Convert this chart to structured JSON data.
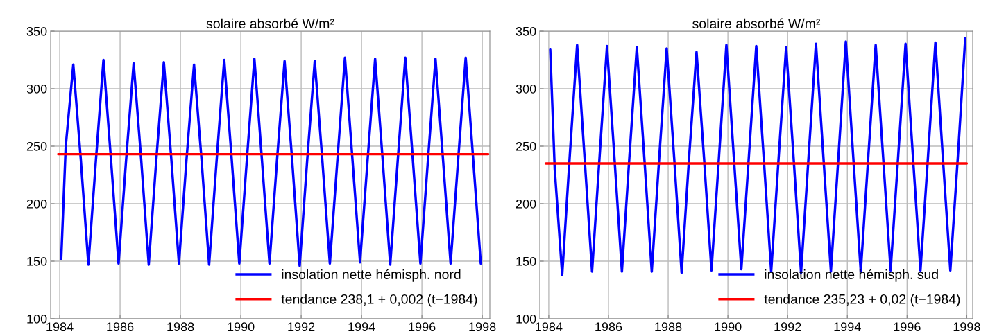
{
  "chart_data": [
    {
      "type": "line",
      "title": "solaire absorbé W/m²",
      "xlim": [
        1983.7,
        1998.25
      ],
      "xticks": [
        1984,
        1986,
        1988,
        1990,
        1992,
        1994,
        1996,
        1998
      ],
      "ylim": [
        100,
        350
      ],
      "yticks": [
        100,
        150,
        200,
        250,
        300,
        350
      ],
      "grid": true,
      "legend": "bottom right",
      "series": [
        {
          "name": "insolation nette hémisph. nord",
          "color": "#0000ff",
          "x": [
            1984.05,
            1984.2,
            1984.45,
            1984.7,
            1984.95,
            1985.2,
            1985.45,
            1985.7,
            1985.95,
            1986.2,
            1986.45,
            1986.7,
            1986.95,
            1987.2,
            1987.45,
            1987.7,
            1987.95,
            1988.2,
            1988.45,
            1988.7,
            1988.95,
            1989.2,
            1989.45,
            1989.7,
            1989.95,
            1990.2,
            1990.45,
            1990.7,
            1990.95,
            1991.2,
            1991.45,
            1991.7,
            1991.95,
            1992.2,
            1992.45,
            1992.7,
            1992.95,
            1993.2,
            1993.45,
            1993.7,
            1993.95,
            1994.2,
            1994.45,
            1994.7,
            1994.95,
            1995.2,
            1995.45,
            1995.7,
            1995.95,
            1996.2,
            1996.45,
            1996.7,
            1996.95,
            1997.2,
            1997.45,
            1997.7,
            1997.95
          ],
          "values": [
            152,
            250,
            321,
            238,
            147,
            238,
            325,
            238,
            148,
            238,
            322,
            238,
            147,
            238,
            323,
            238,
            148,
            238,
            321,
            238,
            147,
            238,
            325,
            238,
            148,
            238,
            326,
            238,
            148,
            238,
            324,
            238,
            146,
            238,
            324,
            238,
            148,
            238,
            327,
            238,
            149,
            238,
            326,
            238,
            147,
            238,
            327,
            238,
            148,
            238,
            326,
            238,
            148,
            238,
            327,
            238,
            148
          ]
        },
        {
          "name": "tendance 238,1 + 0,002 (t−1984)",
          "color": "#ff0000",
          "x": [
            1983.95,
            1998.2
          ],
          "values": [
            243,
            243
          ]
        }
      ]
    },
    {
      "type": "line",
      "title": "solaire absorbé W/m²",
      "xlim": [
        1983.7,
        1998.2
      ],
      "xticks": [
        1984,
        1986,
        1988,
        1990,
        1992,
        1994,
        1996,
        1998
      ],
      "ylim": [
        100,
        350
      ],
      "yticks": [
        100,
        150,
        200,
        250,
        300,
        350
      ],
      "grid": true,
      "legend": "bottom right",
      "series": [
        {
          "name": "insolation nette hémisph. sud",
          "color": "#0000ff",
          "x": [
            1984.05,
            1984.2,
            1984.45,
            1984.7,
            1984.95,
            1985.2,
            1985.45,
            1985.7,
            1985.95,
            1986.2,
            1986.45,
            1986.7,
            1986.95,
            1987.2,
            1987.45,
            1987.7,
            1987.95,
            1988.2,
            1988.45,
            1988.7,
            1988.95,
            1989.2,
            1989.45,
            1989.7,
            1989.95,
            1990.2,
            1990.45,
            1990.7,
            1990.95,
            1991.2,
            1991.45,
            1991.7,
            1991.95,
            1992.2,
            1992.45,
            1992.7,
            1992.95,
            1993.2,
            1993.45,
            1993.7,
            1993.95,
            1994.2,
            1994.45,
            1994.7,
            1994.95,
            1995.2,
            1995.45,
            1995.7,
            1995.95,
            1996.2,
            1996.45,
            1996.7,
            1996.95,
            1997.2,
            1997.45,
            1997.7,
            1997.95
          ],
          "values": [
            334,
            230,
            138,
            240,
            338,
            240,
            141,
            240,
            337,
            240,
            141,
            240,
            336,
            240,
            141,
            240,
            335,
            240,
            140,
            240,
            332,
            240,
            142,
            240,
            338,
            240,
            143,
            240,
            337,
            240,
            141,
            240,
            336,
            240,
            140,
            240,
            339,
            240,
            141,
            240,
            341,
            240,
            141,
            240,
            338,
            240,
            142,
            240,
            339,
            240,
            142,
            240,
            340,
            240,
            142,
            240,
            344
          ]
        },
        {
          "name": "tendance 235,23 + 0,02 (t−1984)",
          "color": "#ff0000",
          "x": [
            1983.9,
            1998.0
          ],
          "values": [
            235,
            235
          ]
        }
      ]
    }
  ]
}
